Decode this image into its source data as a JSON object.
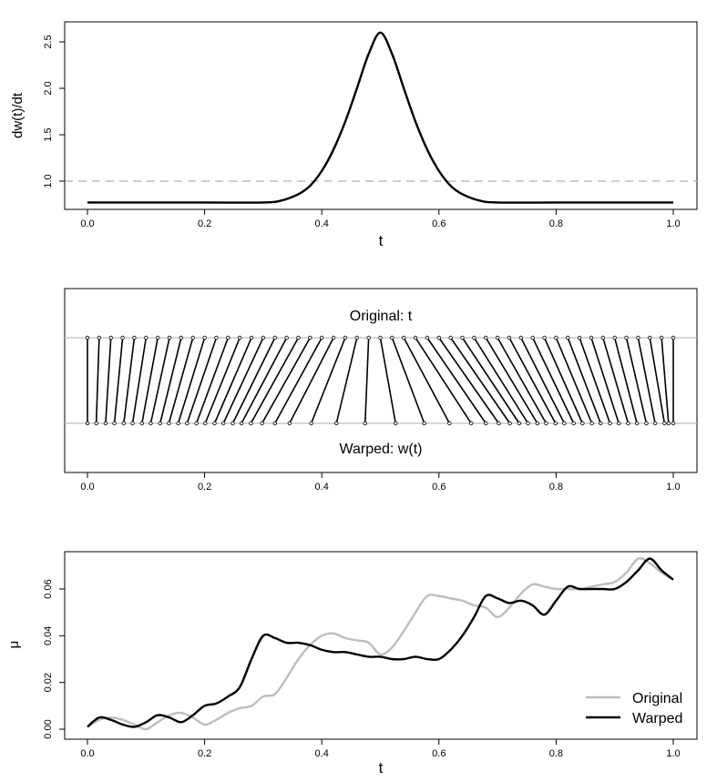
{
  "chart_data": [
    {
      "type": "line",
      "title": "",
      "xlabel": "t",
      "ylabel": "dw(t)/dt",
      "xlim": [
        0,
        1
      ],
      "ylim": [
        0.72,
        2.7
      ],
      "xticks": [
        "0.0",
        "0.2",
        "0.4",
        "0.6",
        "0.8",
        "1.0"
      ],
      "yticks": [
        "1.0",
        "1.5",
        "2.0",
        "2.5"
      ],
      "reference_line": {
        "y": 1.0,
        "style": "dashed",
        "color": "#bdbdbd"
      },
      "series": [
        {
          "name": "dw/dt",
          "color": "#000000",
          "x": [
            0,
            0.1,
            0.2,
            0.3,
            0.33,
            0.36,
            0.38,
            0.4,
            0.42,
            0.44,
            0.46,
            0.48,
            0.5,
            0.52,
            0.54,
            0.56,
            0.58,
            0.6,
            0.62,
            0.64,
            0.67,
            0.7,
            0.8,
            0.9,
            1.0
          ],
          "values": [
            0.77,
            0.77,
            0.77,
            0.77,
            0.79,
            0.86,
            0.95,
            1.11,
            1.34,
            1.64,
            2.0,
            2.37,
            2.6,
            2.37,
            2.0,
            1.64,
            1.34,
            1.11,
            0.95,
            0.86,
            0.79,
            0.77,
            0.77,
            0.77,
            0.77
          ]
        }
      ]
    },
    {
      "type": "other",
      "title": "",
      "xlim": [
        0,
        1
      ],
      "xticks": [
        "0.0",
        "0.2",
        "0.4",
        "0.6",
        "0.8",
        "1.0"
      ],
      "top_label": "Original: t",
      "bottom_label": "Warped: w(t)",
      "original_t": [
        0,
        0.02,
        0.04,
        0.06,
        0.08,
        0.1,
        0.12,
        0.14,
        0.16,
        0.18,
        0.2,
        0.22,
        0.24,
        0.26,
        0.28,
        0.3,
        0.32,
        0.34,
        0.36,
        0.38,
        0.4,
        0.42,
        0.44,
        0.46,
        0.48,
        0.5,
        0.52,
        0.54,
        0.56,
        0.58,
        0.6,
        0.62,
        0.64,
        0.66,
        0.68,
        0.7,
        0.72,
        0.74,
        0.76,
        0.78,
        0.8,
        0.82,
        0.84,
        0.86,
        0.88,
        0.9,
        0.92,
        0.94,
        0.96,
        0.98,
        1.0
      ],
      "warped_t": [
        0,
        0.015,
        0.031,
        0.046,
        0.062,
        0.077,
        0.093,
        0.108,
        0.124,
        0.139,
        0.155,
        0.17,
        0.186,
        0.201,
        0.217,
        0.232,
        0.248,
        0.263,
        0.279,
        0.298,
        0.32,
        0.345,
        0.382,
        0.425,
        0.474,
        0.526,
        0.575,
        0.618,
        0.655,
        0.68,
        0.702,
        0.721,
        0.737,
        0.752,
        0.768,
        0.783,
        0.799,
        0.814,
        0.83,
        0.845,
        0.861,
        0.876,
        0.892,
        0.907,
        0.923,
        0.938,
        0.954,
        0.969,
        0.985,
        0.992,
        1.0
      ]
    },
    {
      "type": "line",
      "title": "",
      "xlabel": "t",
      "ylabel": "μ",
      "xlim": [
        0,
        1
      ],
      "ylim": [
        -0.002,
        0.076
      ],
      "xticks": [
        "0.0",
        "0.2",
        "0.4",
        "0.6",
        "0.8",
        "1.0"
      ],
      "yticks": [
        "0.00",
        "0.02",
        "0.04",
        "0.06"
      ],
      "legend": {
        "position": "bottom-right",
        "entries": [
          "Original",
          "Warped"
        ]
      },
      "series": [
        {
          "name": "Original",
          "color": "#bdbdbd",
          "x": [
            0,
            0.02,
            0.04,
            0.06,
            0.08,
            0.1,
            0.12,
            0.14,
            0.16,
            0.18,
            0.2,
            0.22,
            0.24,
            0.26,
            0.28,
            0.3,
            0.32,
            0.34,
            0.36,
            0.38,
            0.4,
            0.42,
            0.44,
            0.46,
            0.48,
            0.5,
            0.52,
            0.54,
            0.56,
            0.58,
            0.6,
            0.62,
            0.64,
            0.66,
            0.68,
            0.7,
            0.72,
            0.74,
            0.76,
            0.78,
            0.8,
            0.82,
            0.84,
            0.86,
            0.88,
            0.9,
            0.92,
            0.94,
            0.96,
            0.98,
            1.0
          ],
          "values": [
            0.001,
            0.004,
            0.005,
            0.004,
            0.002,
            0.0,
            0.003,
            0.006,
            0.007,
            0.005,
            0.002,
            0.004,
            0.007,
            0.009,
            0.01,
            0.014,
            0.015,
            0.022,
            0.03,
            0.036,
            0.04,
            0.041,
            0.039,
            0.038,
            0.037,
            0.032,
            0.035,
            0.042,
            0.05,
            0.057,
            0.057,
            0.056,
            0.055,
            0.053,
            0.052,
            0.048,
            0.052,
            0.058,
            0.062,
            0.061,
            0.06,
            0.06,
            0.06,
            0.061,
            0.062,
            0.063,
            0.067,
            0.073,
            0.071,
            0.067,
            0.064
          ]
        },
        {
          "name": "Warped",
          "color": "#000000",
          "x": [
            0,
            0.02,
            0.04,
            0.06,
            0.08,
            0.1,
            0.12,
            0.14,
            0.16,
            0.18,
            0.2,
            0.22,
            0.24,
            0.26,
            0.28,
            0.3,
            0.32,
            0.34,
            0.36,
            0.38,
            0.4,
            0.42,
            0.44,
            0.46,
            0.48,
            0.5,
            0.52,
            0.54,
            0.56,
            0.58,
            0.6,
            0.62,
            0.64,
            0.66,
            0.68,
            0.7,
            0.72,
            0.74,
            0.76,
            0.78,
            0.8,
            0.82,
            0.84,
            0.86,
            0.88,
            0.9,
            0.92,
            0.94,
            0.96,
            0.98,
            1.0
          ],
          "values": [
            0.001,
            0.005,
            0.004,
            0.002,
            0.001,
            0.003,
            0.006,
            0.005,
            0.003,
            0.006,
            0.01,
            0.011,
            0.014,
            0.018,
            0.03,
            0.04,
            0.039,
            0.037,
            0.037,
            0.036,
            0.034,
            0.033,
            0.033,
            0.032,
            0.031,
            0.031,
            0.03,
            0.03,
            0.031,
            0.03,
            0.03,
            0.034,
            0.04,
            0.048,
            0.057,
            0.056,
            0.054,
            0.055,
            0.053,
            0.049,
            0.055,
            0.061,
            0.06,
            0.06,
            0.06,
            0.06,
            0.063,
            0.068,
            0.073,
            0.068,
            0.064
          ]
        }
      ]
    }
  ]
}
